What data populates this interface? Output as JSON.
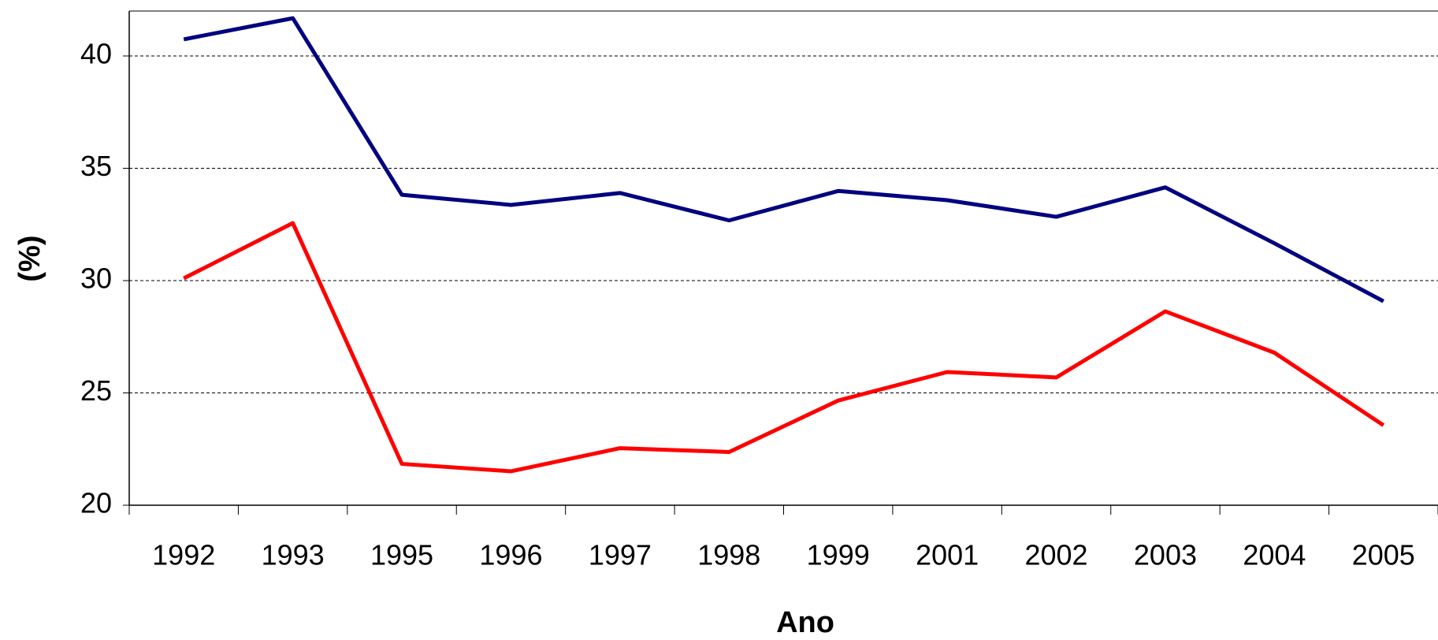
{
  "chart_data": {
    "type": "line",
    "x_label": "Ano",
    "y_label": "(%)",
    "categories": [
      "1992",
      "1993",
      "1995",
      "1996",
      "1997",
      "1998",
      "1999",
      "2001",
      "2002",
      "2003",
      "2004",
      "2005"
    ],
    "series": [
      {
        "color": "#000080",
        "values": [
          40.74,
          41.68,
          33.82,
          33.37,
          33.9,
          32.68,
          33.99,
          33.58,
          32.84,
          34.15,
          31.66,
          29.08
        ]
      },
      {
        "color": "#ff0000",
        "values": [
          30.1,
          32.56,
          21.84,
          21.51,
          22.54,
          22.37,
          24.66,
          25.93,
          25.69,
          28.63,
          26.79,
          23.56
        ]
      }
    ],
    "ylim": [
      20,
      42
    ],
    "yticks": [
      20,
      25,
      30,
      35,
      40
    ],
    "grid": true
  }
}
